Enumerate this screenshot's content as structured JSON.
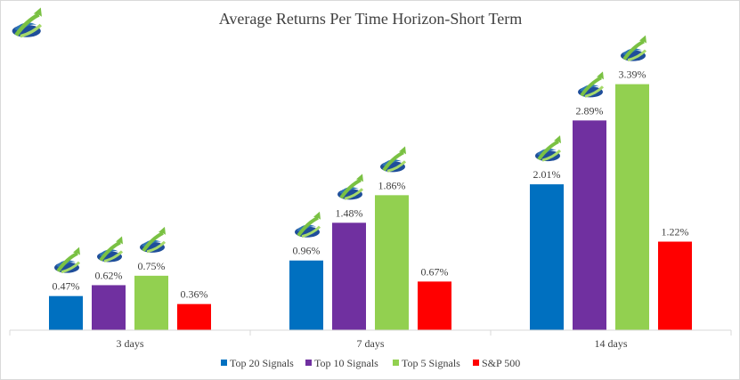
{
  "chart_data": {
    "type": "bar",
    "title": "Average Returns Per Time Horizon-Short Term",
    "categories": [
      "3 days",
      "7 days",
      "14 days"
    ],
    "series": [
      {
        "name": "Top 20 Signals",
        "color": "#0070c0",
        "values": [
          0.47,
          0.96,
          2.01
        ],
        "labels": [
          "0.47%",
          "0.96%",
          "2.01%"
        ],
        "icon": "logo-icon"
      },
      {
        "name": "Top 10 Signals",
        "color": "#7030a0",
        "values": [
          0.62,
          1.48,
          2.89
        ],
        "labels": [
          "0.62%",
          "1.48%",
          "2.89%"
        ],
        "icon": "logo-icon"
      },
      {
        "name": "Top 5 Signals",
        "color": "#92d050",
        "values": [
          0.75,
          1.86,
          3.39
        ],
        "labels": [
          "0.75%",
          "1.86%",
          "3.39%"
        ],
        "icon": "logo-icon"
      },
      {
        "name": "S&P 500",
        "color": "#ff0000",
        "values": [
          0.36,
          0.67,
          1.22
        ],
        "labels": [
          "0.36%",
          "0.67%",
          "1.22%"
        ]
      }
    ],
    "ylim": [
      0,
      3.9
    ],
    "grid": false,
    "legend": "bottom"
  },
  "branding": {
    "icon": "logo-icon"
  }
}
